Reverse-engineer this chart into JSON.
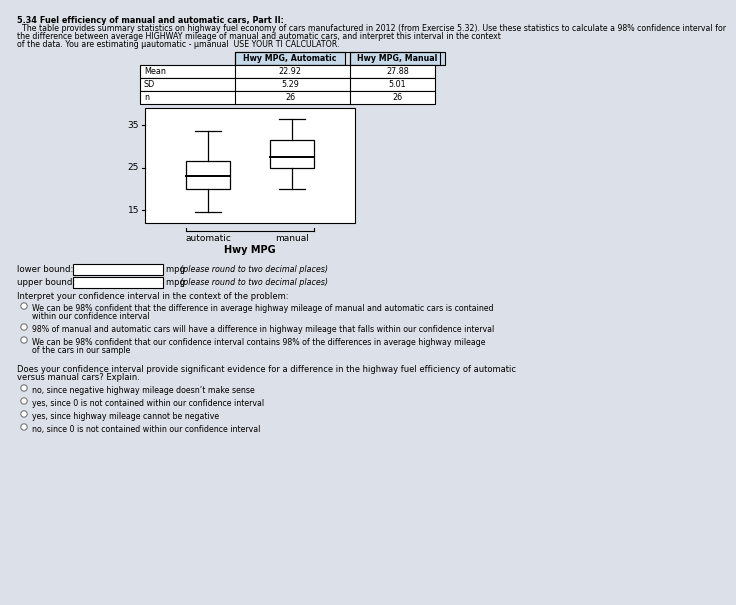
{
  "background_color": "#dce0e8",
  "title_bold": "5.34 Fuel efficiency of manual and automatic cars, Part II:",
  "para_lines": [
    "  The table provides summary statistics on highway fuel economy of cars manufactured in 2012 (from Exercise 5.32). Use these statistics to calculate a 98% confidence interval for",
    "the difference between average HIGHWAY mileage of manual and automatic cars, and interpret this interval in the context",
    "of the data. You are estimating μautomatic - μmanual  USE YOUR TI CALCULATOR."
  ],
  "table_headers": [
    "",
    "Hwy MPG, Automatic",
    "Hwy MPG, Manual"
  ],
  "table_rows": [
    [
      "Mean",
      "22.92",
      "27.88"
    ],
    [
      "SD",
      "5.29",
      "5.01"
    ],
    [
      "n",
      "26",
      "26"
    ]
  ],
  "auto_box": {
    "whisker_low": 14.5,
    "q1": 20.0,
    "median": 23.0,
    "q3": 26.5,
    "whisker_high": 33.5
  },
  "manual_box": {
    "whisker_low": 20.0,
    "q1": 25.0,
    "median": 27.5,
    "q3": 31.5,
    "whisker_high": 36.5
  },
  "yticks": [
    15,
    25,
    35
  ],
  "ymin": 12,
  "ymax": 39,
  "xlabel": "Hwy MPG",
  "xticklabels": [
    "automatic",
    "manual"
  ],
  "lower_bound_label": "lower bound:",
  "upper_bound_label": "upper bound:",
  "mpg_italic": "(please round to two decimal places)",
  "interpret_label": "Interpret your confidence interval in the context of the problem:",
  "radio_options_1": [
    [
      "We can be 98% confident that the difference in average highway mileage of manual and automatic cars is contained",
      "within our confidence interval"
    ],
    [
      "98% of manual and automatic cars will have a difference in highway mileage that falls within our confidence interval"
    ],
    [
      "We can be 98% confident that our confidence interval contains 98% of the differences in average highway mileage",
      "of the cars in our sample"
    ]
  ],
  "question2_lines": [
    "Does your confidence interval provide significant evidence for a difference in the highway fuel efficiency of automatic",
    "versus manual cars? Explain."
  ],
  "radio_options_2": [
    [
      "no, since negative highway mileage doesn’t make sense"
    ],
    [
      "yes, since 0 is not contained within our confidence interval"
    ],
    [
      "yes, since highway mileage cannot be negative"
    ],
    [
      "no, since 0 is not contained within our confidence interval"
    ]
  ]
}
